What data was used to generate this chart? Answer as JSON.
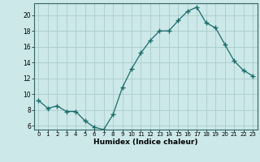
{
  "x": [
    0,
    1,
    2,
    3,
    4,
    5,
    6,
    7,
    8,
    9,
    10,
    11,
    12,
    13,
    14,
    15,
    16,
    17,
    18,
    19,
    20,
    21,
    22,
    23
  ],
  "y": [
    9.2,
    8.2,
    8.5,
    7.8,
    7.8,
    6.6,
    5.8,
    5.5,
    7.4,
    10.8,
    13.2,
    15.2,
    16.8,
    18.0,
    18.0,
    19.3,
    20.5,
    21.0,
    19.0,
    18.4,
    16.3,
    14.2,
    13.0,
    12.3
  ],
  "line_color": "#1a6b6b",
  "marker": "+",
  "marker_size": 4,
  "marker_lw": 1.0,
  "bg_color": "#cce8e8",
  "grid_color": "#aacccc",
  "xlabel": "Humidex (Indice chaleur)",
  "ylim": [
    5.5,
    21.5
  ],
  "xlim": [
    -0.5,
    23.5
  ],
  "yticks": [
    6,
    8,
    10,
    12,
    14,
    16,
    18,
    20
  ],
  "xticks": [
    0,
    1,
    2,
    3,
    4,
    5,
    6,
    7,
    8,
    9,
    10,
    11,
    12,
    13,
    14,
    15,
    16,
    17,
    18,
    19,
    20,
    21,
    22,
    23
  ]
}
